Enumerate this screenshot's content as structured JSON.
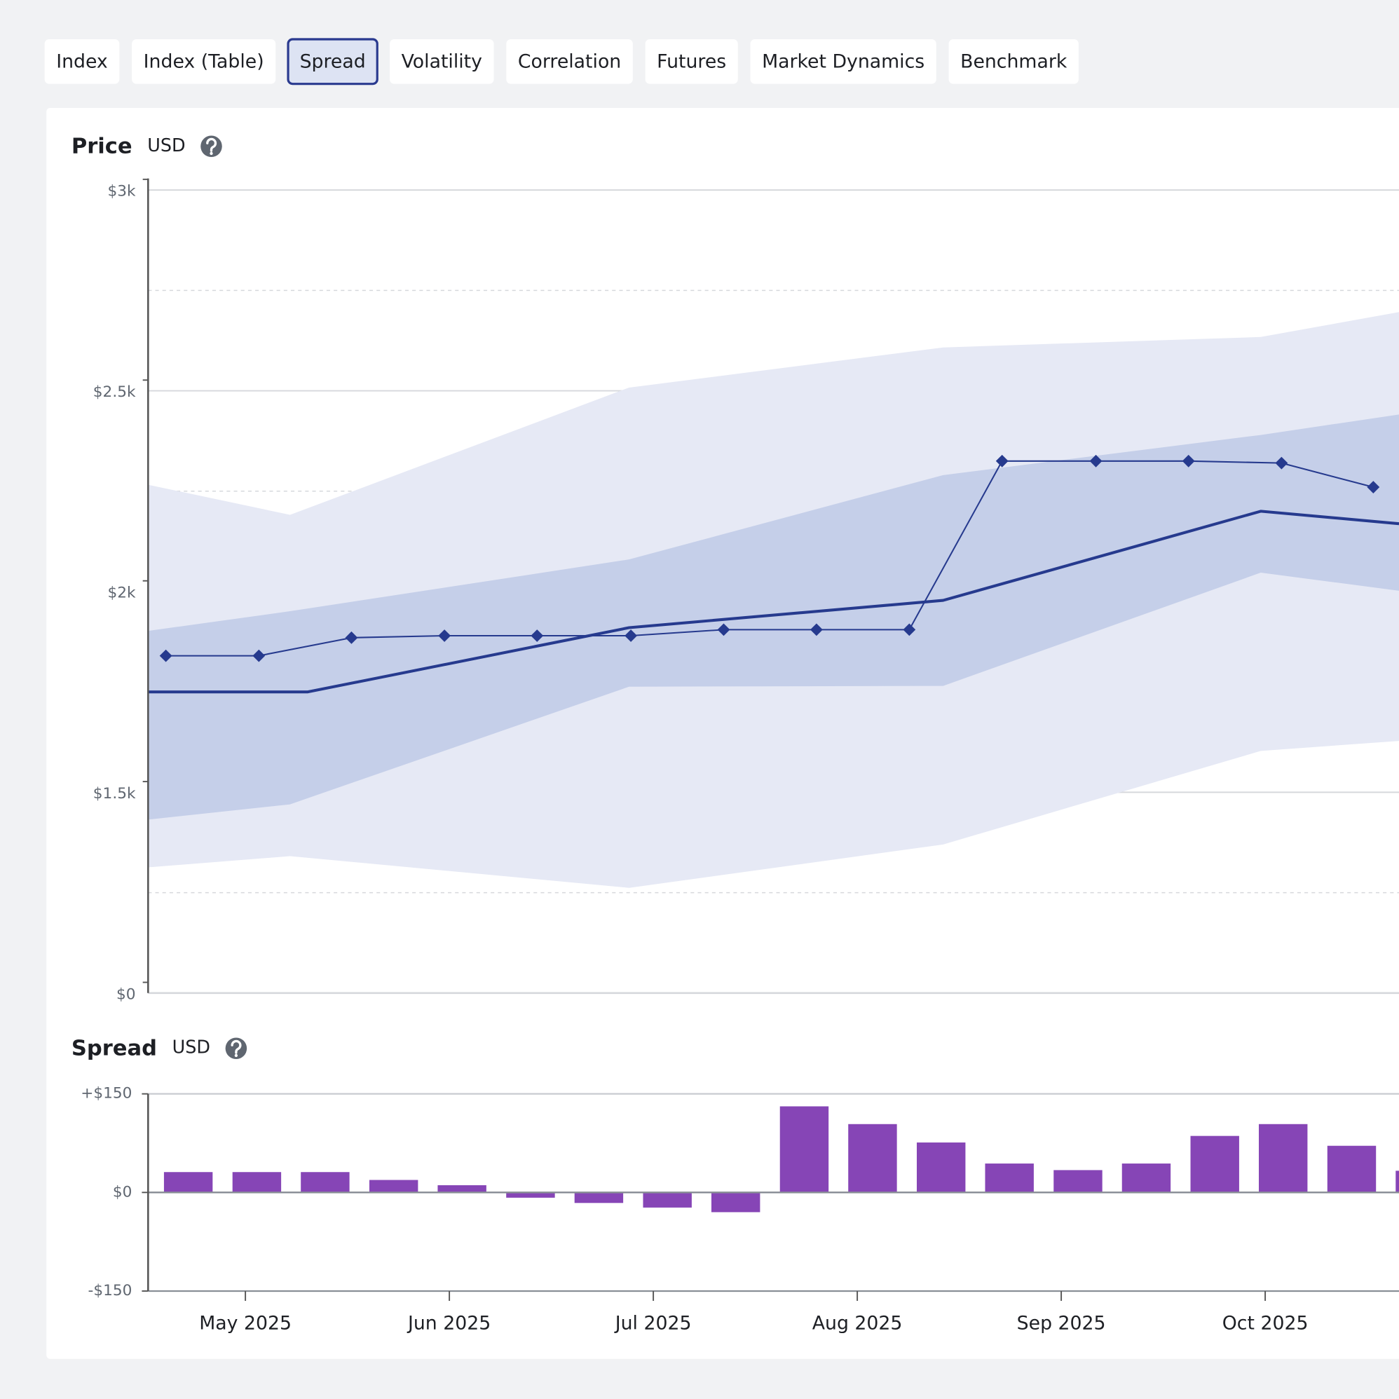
{
  "tabs": [
    "Index",
    "Index (Table)",
    "Spread",
    "Volatility",
    "Correlation",
    "Futures",
    "Market Dynamics",
    "Benchmark"
  ],
  "active_tab": 2,
  "chart_data": [
    {
      "type": "line",
      "title": "Price",
      "unit": "USD",
      "ylim": [
        1000,
        3000
      ],
      "y_break": [
        0,
        1000
      ],
      "yticks": [
        {
          "value": 0,
          "label": "$0"
        },
        {
          "value": 1500,
          "label": "$1.5k"
        },
        {
          "value": 2000,
          "label": "$2k"
        },
        {
          "value": 2500,
          "label": "$2.5k"
        },
        {
          "value": 3000,
          "label": "$3k"
        }
      ],
      "minor_grid": [
        1250,
        1750,
        2250,
        2750
      ],
      "xlim": [
        4.523,
        10.656
      ],
      "bands": [
        {
          "color": "#e6e9f5",
          "x": [
            4.523,
            5.219,
            6.881,
            8.421,
            9.978,
            10.656
          ],
          "lower": [
            1313,
            1341,
            1262,
            1370,
            1603,
            1628
          ],
          "upper": [
            2266,
            2191,
            2508,
            2608,
            2634,
            2696
          ]
        },
        {
          "color": "#c5cfe9",
          "x": [
            4.523,
            5.219,
            6.881,
            8.421,
            9.978,
            10.656
          ],
          "lower": [
            1432,
            1470,
            1763,
            1765,
            2047,
            2002
          ],
          "upper": [
            1902,
            1951,
            2080,
            2290,
            2390,
            2441
          ]
        }
      ],
      "series": [
        {
          "color": "#263a8e",
          "x": [
            4.523,
            5.306,
            6.881,
            8.421,
            9.978,
            10.656
          ],
          "values": [
            1750,
            1750,
            1910,
            1978,
            2200,
            2169
          ]
        },
        {
          "color": "#263a8e",
          "marker": "diamond",
          "x": [
            4.61,
            5.066,
            5.52,
            5.976,
            6.43,
            6.89,
            7.345,
            7.8,
            8.255,
            8.71,
            9.17,
            9.624,
            10.08,
            10.53
          ],
          "values": [
            1840,
            1840,
            1885,
            1890,
            1890,
            1890,
            1905,
            1905,
            1905,
            2325,
            2325,
            2325,
            2320,
            2260
          ]
        }
      ]
    },
    {
      "type": "bar",
      "title": "Spread",
      "unit": "USD",
      "ylim": [
        -150,
        150
      ],
      "yticks": [
        {
          "value": -150,
          "label": "-$150"
        },
        {
          "value": 0,
          "label": "$0"
        },
        {
          "value": 150,
          "label": "+$150"
        }
      ],
      "xlim": [
        4.523,
        10.656
      ],
      "xticks": [
        {
          "value": 5,
          "label": "May 2025"
        },
        {
          "value": 6,
          "label": "Jun 2025"
        },
        {
          "value": 7,
          "label": "Jul 2025"
        },
        {
          "value": 8,
          "label": "Aug 2025"
        },
        {
          "value": 9,
          "label": "Sep 2025"
        },
        {
          "value": 10,
          "label": "Oct 2025"
        }
      ],
      "x": [
        4.72,
        5.056,
        5.391,
        5.727,
        6.062,
        6.398,
        6.733,
        7.069,
        7.404,
        7.74,
        8.075,
        8.411,
        8.746,
        9.082,
        9.417,
        9.753,
        10.088,
        10.424,
        10.759
      ],
      "values": [
        31,
        31,
        31,
        19,
        11,
        -8,
        -16,
        -23,
        -30,
        131,
        104,
        76,
        44,
        34,
        44,
        86,
        104,
        71,
        33
      ],
      "color": "#8645b6"
    }
  ]
}
